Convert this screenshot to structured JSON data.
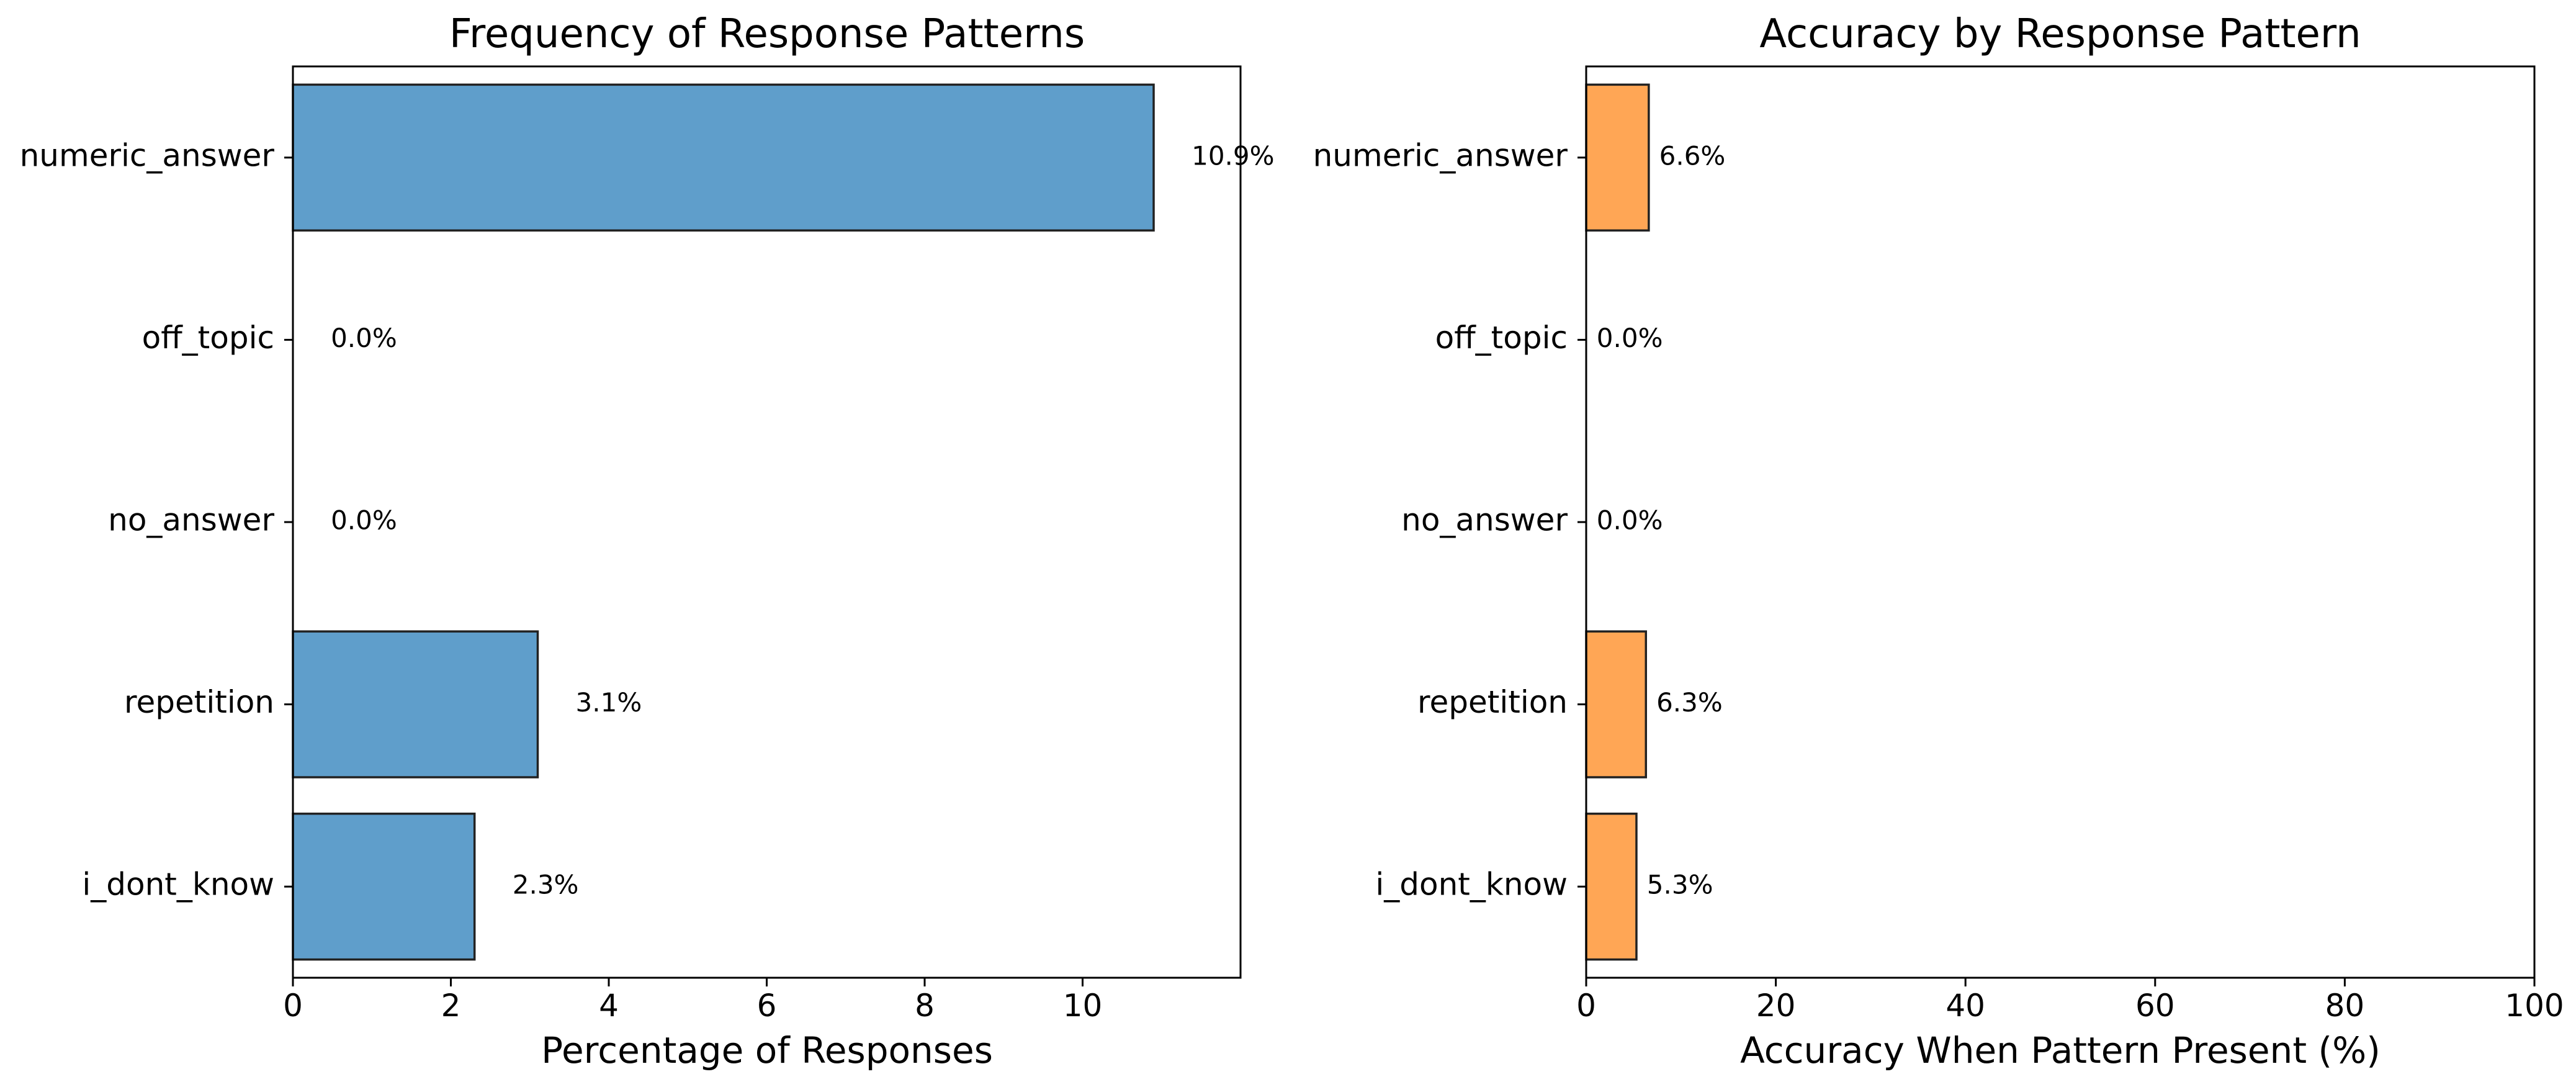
{
  "chart_data": [
    {
      "type": "bar",
      "orientation": "horizontal",
      "title": "Frequency of Response Patterns",
      "xlabel": "Percentage of Responses",
      "ylabel": "",
      "categories": [
        "numeric_answer",
        "off_topic",
        "no_answer",
        "repetition",
        "i_dont_know"
      ],
      "values": [
        10.9,
        0.0,
        0.0,
        3.1,
        2.3
      ],
      "value_labels": [
        "10.9%",
        "0.0%",
        "0.0%",
        "3.1%",
        "2.3%"
      ],
      "xlim": [
        0,
        12
      ],
      "xticks": [
        0,
        2,
        4,
        6,
        8,
        10
      ],
      "bar_color": "#5f9ecb",
      "grid": false
    },
    {
      "type": "bar",
      "orientation": "horizontal",
      "title": "Accuracy by Response Pattern",
      "xlabel": "Accuracy When Pattern Present (%)",
      "ylabel": "",
      "categories": [
        "numeric_answer",
        "off_topic",
        "no_answer",
        "repetition",
        "i_dont_know"
      ],
      "values": [
        6.6,
        0.0,
        0.0,
        6.3,
        5.3
      ],
      "value_labels": [
        "6.6%",
        "0.0%",
        "0.0%",
        "6.3%",
        "5.3%"
      ],
      "xlim": [
        0,
        100
      ],
      "xticks": [
        0,
        20,
        40,
        60,
        80,
        100
      ],
      "bar_color": "#ffa655",
      "grid": false
    }
  ]
}
